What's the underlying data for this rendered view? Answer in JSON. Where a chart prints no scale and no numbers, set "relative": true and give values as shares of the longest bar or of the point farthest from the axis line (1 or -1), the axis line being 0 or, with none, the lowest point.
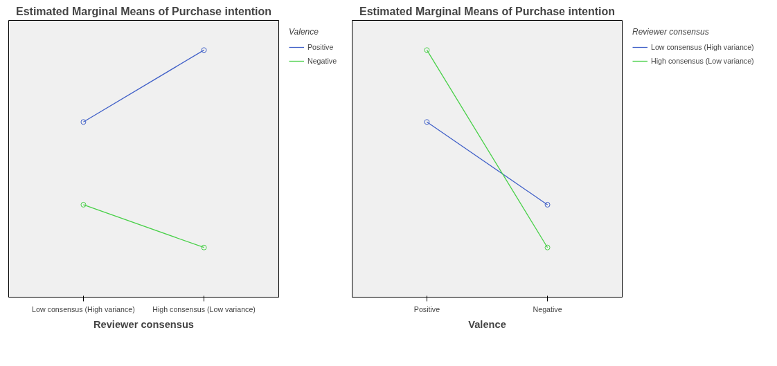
{
  "chart_data": [
    {
      "type": "line",
      "title": "Estimated Marginal Means of Purchase intention",
      "xlabel": "Reviewer consensus",
      "legend_title": "Valence",
      "categories": [
        "Low consensus (High variance)",
        "High consensus (Low variance)"
      ],
      "relative": true,
      "marker": "circle",
      "grid": false,
      "legend": "top right",
      "series": [
        {
          "name": "Positive",
          "color": "#4060c8",
          "values": [
            0.709,
            1
          ]
        },
        {
          "name": "Negative",
          "color": "#48d048",
          "values": [
            0.374,
            0.201
          ]
        }
      ]
    },
    {
      "type": "line",
      "title": "Estimated Marginal Means of Purchase intention",
      "xlabel": "Valence",
      "legend_title": "Reviewer consensus",
      "categories": [
        "Positive",
        "Negative"
      ],
      "relative": true,
      "marker": "circle",
      "grid": false,
      "legend": "top right",
      "series": [
        {
          "name": "Low consensus (High variance)",
          "color": "#4060c8",
          "values": [
            0.709,
            0.374
          ]
        },
        {
          "name": "High consensus (Low variance)",
          "color": "#48d048",
          "values": [
            1,
            0.201
          ]
        }
      ]
    }
  ]
}
